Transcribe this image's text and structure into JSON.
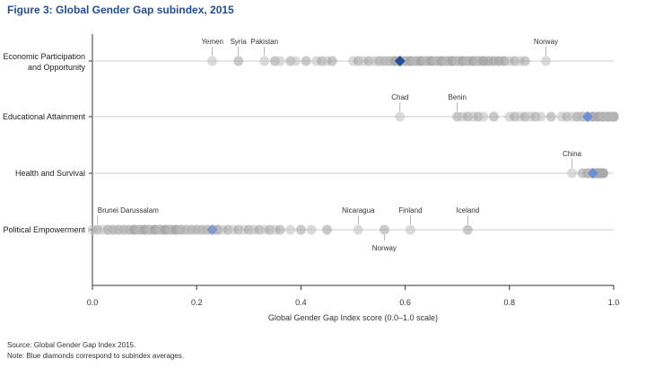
{
  "page": {
    "title": "Figure 3: Global Gender Gap subindex, 2015",
    "source": "Source: Global Gender Gap Index 2015.",
    "note": "Note: Blue diamonds correspond to subindex averages."
  },
  "chart_data": {
    "type": "scatter",
    "title": "Figure 3: Global Gender Gap subindex, 2015",
    "xlabel": "Global Gender Gap Index score (0.0–1.0 scale)",
    "ylabel": "",
    "xlim": [
      0,
      1
    ],
    "xticks": [
      "0.0",
      "0.2",
      "0.4",
      "0.6",
      "0.8",
      "1.0"
    ],
    "grid": false,
    "colors": {
      "point": "#bdbdbd",
      "point_alt": "#9e9e9e",
      "average_dark": "#284f9b",
      "average_light": "#6d8fd6",
      "axis": "#333333",
      "row_line": "#cccccc"
    },
    "categories": [
      "Economic Participation and Opportunity",
      "Educational Attainment",
      "Health and Survival",
      "Political Empowerment"
    ],
    "category_lines": [
      [
        "Economic Participation",
        "and Opportunity"
      ],
      [
        "Educational Attainment"
      ],
      [
        "Health and Survival"
      ],
      [
        "Political Empowerment"
      ]
    ],
    "series": [
      {
        "category": "Economic Participation and Opportunity",
        "average": 0.59,
        "annotations": [
          {
            "label": "Yemen",
            "x": 0.23,
            "position": "above"
          },
          {
            "label": "Syria",
            "x": 0.28,
            "position": "above"
          },
          {
            "label": "Pakistan",
            "x": 0.33,
            "position": "above"
          },
          {
            "label": "Norway",
            "x": 0.87,
            "position": "above"
          }
        ],
        "values": [
          0.23,
          0.28,
          0.33,
          0.35,
          0.36,
          0.38,
          0.39,
          0.41,
          0.43,
          0.44,
          0.45,
          0.46,
          0.5,
          0.51,
          0.52,
          0.53,
          0.54,
          0.55,
          0.55,
          0.56,
          0.56,
          0.57,
          0.57,
          0.58,
          0.58,
          0.58,
          0.59,
          0.59,
          0.6,
          0.6,
          0.6,
          0.61,
          0.61,
          0.61,
          0.62,
          0.62,
          0.62,
          0.63,
          0.63,
          0.63,
          0.64,
          0.64,
          0.64,
          0.65,
          0.65,
          0.65,
          0.66,
          0.66,
          0.66,
          0.67,
          0.67,
          0.67,
          0.68,
          0.68,
          0.68,
          0.69,
          0.69,
          0.69,
          0.7,
          0.7,
          0.7,
          0.71,
          0.71,
          0.71,
          0.72,
          0.72,
          0.72,
          0.73,
          0.73,
          0.73,
          0.74,
          0.74,
          0.74,
          0.75,
          0.75,
          0.75,
          0.76,
          0.76,
          0.77,
          0.77,
          0.78,
          0.78,
          0.79,
          0.79,
          0.8,
          0.81,
          0.82,
          0.83,
          0.87
        ]
      },
      {
        "category": "Educational Attainment",
        "average": 0.95,
        "annotations": [
          {
            "label": "Chad",
            "x": 0.59,
            "position": "above"
          },
          {
            "label": "Benin",
            "x": 0.7,
            "position": "above"
          }
        ],
        "values": [
          0.59,
          0.7,
          0.71,
          0.72,
          0.73,
          0.74,
          0.75,
          0.77,
          0.8,
          0.81,
          0.82,
          0.83,
          0.84,
          0.85,
          0.86,
          0.88,
          0.9,
          0.91,
          0.92,
          0.93,
          0.93,
          0.94,
          0.94,
          0.95,
          0.95,
          0.96,
          0.96,
          0.96,
          0.97,
          0.97,
          0.97,
          0.97,
          0.98,
          0.98,
          0.98,
          0.98,
          0.98,
          0.99,
          0.99,
          0.99,
          0.99,
          0.99,
          0.99,
          1.0,
          1.0,
          1.0,
          1.0,
          1.0,
          1.0,
          1.0,
          1.0,
          1.0,
          1.0,
          1.0,
          1.0
        ]
      },
      {
        "category": "Health and Survival",
        "average": 0.96,
        "annotations": [
          {
            "label": "China",
            "x": 0.92,
            "position": "above"
          }
        ],
        "values": [
          0.92,
          0.94,
          0.95,
          0.95,
          0.955,
          0.96,
          0.96,
          0.965,
          0.965,
          0.97,
          0.97,
          0.97,
          0.97,
          0.97,
          0.97,
          0.97,
          0.97,
          0.97,
          0.975,
          0.975,
          0.975,
          0.975,
          0.975,
          0.975,
          0.98,
          0.98,
          0.98,
          0.98
        ]
      },
      {
        "category": "Political Empowerment",
        "average": 0.23,
        "annotations": [
          {
            "label": "Brunei Darussalam",
            "x": 0.01,
            "position": "above"
          },
          {
            "label": "Nicaragua",
            "x": 0.51,
            "position": "above"
          },
          {
            "label": "Norway",
            "x": 0.56,
            "position": "below"
          },
          {
            "label": "Finland",
            "x": 0.61,
            "position": "above"
          },
          {
            "label": "Iceland",
            "x": 0.72,
            "position": "above"
          }
        ],
        "values": [
          0.0,
          0.01,
          0.02,
          0.03,
          0.03,
          0.04,
          0.04,
          0.05,
          0.05,
          0.06,
          0.06,
          0.07,
          0.07,
          0.08,
          0.08,
          0.08,
          0.09,
          0.09,
          0.09,
          0.1,
          0.1,
          0.1,
          0.11,
          0.11,
          0.11,
          0.12,
          0.12,
          0.12,
          0.13,
          0.13,
          0.13,
          0.14,
          0.14,
          0.14,
          0.15,
          0.15,
          0.15,
          0.16,
          0.16,
          0.16,
          0.17,
          0.17,
          0.17,
          0.18,
          0.18,
          0.19,
          0.19,
          0.2,
          0.2,
          0.21,
          0.21,
          0.22,
          0.22,
          0.23,
          0.24,
          0.24,
          0.25,
          0.26,
          0.27,
          0.28,
          0.29,
          0.3,
          0.31,
          0.32,
          0.33,
          0.34,
          0.35,
          0.36,
          0.38,
          0.4,
          0.42,
          0.45,
          0.51,
          0.56,
          0.61,
          0.72
        ]
      }
    ]
  }
}
